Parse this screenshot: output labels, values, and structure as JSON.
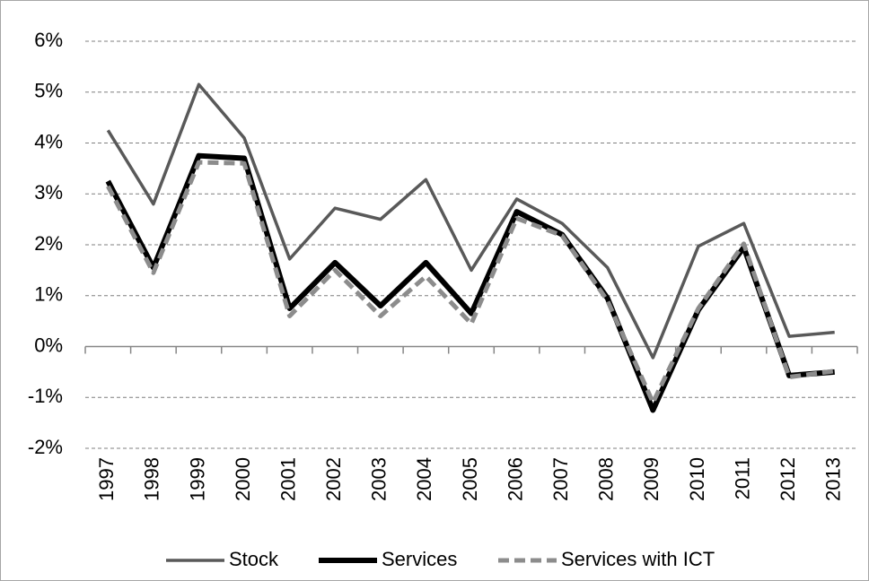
{
  "chart_data": {
    "type": "line",
    "categories": [
      "1997",
      "1998",
      "1999",
      "2000",
      "2001",
      "2002",
      "2003",
      "2004",
      "2005",
      "2006",
      "2007",
      "2008",
      "2009",
      "2010",
      "2011",
      "2012",
      "2013"
    ],
    "series": [
      {
        "name": "Stock",
        "color": "#595959",
        "values": [
          4.25,
          2.8,
          5.15,
          4.1,
          1.72,
          2.72,
          2.5,
          3.28,
          1.5,
          2.9,
          2.42,
          1.55,
          -0.22,
          1.97,
          2.42,
          0.2,
          0.28
        ]
      },
      {
        "name": "Services",
        "color": "#000000",
        "values": [
          3.25,
          1.55,
          3.75,
          3.7,
          0.75,
          1.65,
          0.8,
          1.65,
          0.65,
          2.65,
          2.2,
          0.95,
          -1.25,
          0.72,
          1.95,
          -0.57,
          -0.5
        ]
      },
      {
        "name": "Services with ICT",
        "color": "#8c8c8c",
        "dashed": true,
        "values": [
          3.15,
          1.45,
          3.62,
          3.6,
          0.6,
          1.5,
          0.6,
          1.38,
          0.45,
          2.52,
          2.18,
          0.9,
          -1.1,
          0.75,
          2.02,
          -0.6,
          -0.48
        ]
      }
    ],
    "ylim": [
      -2,
      6
    ],
    "yticks": [
      {
        "value": -2,
        "label": "-2%"
      },
      {
        "value": -1,
        "label": "-1%"
      },
      {
        "value": 0,
        "label": "0%"
      },
      {
        "value": 1,
        "label": "1%"
      },
      {
        "value": 2,
        "label": "2%"
      },
      {
        "value": 3,
        "label": "3%"
      },
      {
        "value": 4,
        "label": "4%"
      },
      {
        "value": 5,
        "label": "5%"
      },
      {
        "value": 6,
        "label": "6%"
      }
    ],
    "grid": true,
    "legend": "bottom"
  }
}
